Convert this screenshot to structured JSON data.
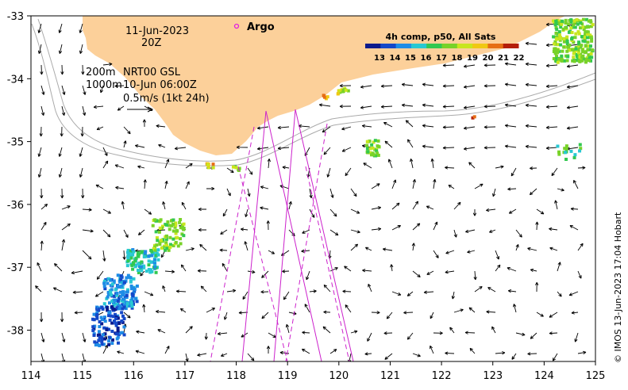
{
  "annotations": {
    "date": "11-Jun-2023",
    "time": "20Z",
    "isobath_200": "200m",
    "isobath_1000": "1000m",
    "current_product": "NRT00 GSL",
    "current_time": "10-Jun 06:00Z",
    "scale_label": "0.5m/s (1kt 24h)"
  },
  "legend": {
    "argo_label": "Argo",
    "argo_color": "#e020e0",
    "colorbar_title": "4h comp, p50, All Sats",
    "colorbar_ticks": [
      "13",
      "14",
      "15",
      "16",
      "17",
      "18",
      "19",
      "20",
      "21",
      "22"
    ],
    "colorbar_colors": [
      "#0a1a8c",
      "#1448c8",
      "#1e8ce6",
      "#28c8d2",
      "#32c850",
      "#78d228",
      "#c8e61e",
      "#f0c814",
      "#e66e14",
      "#b41e0a"
    ]
  },
  "credit": "© IMOS 13-Jun-2023 17:04 Hobart",
  "axes": {
    "x_ticks": [
      "114",
      "115",
      "116",
      "117",
      "118",
      "119",
      "120",
      "121",
      "122",
      "123",
      "124",
      "125"
    ],
    "y_ticks": [
      "-33",
      "-34",
      "-35",
      "-36",
      "-37",
      "-38"
    ],
    "lon_range": [
      114,
      125
    ],
    "lat_range": [
      -33,
      -38.5
    ]
  },
  "colors": {
    "land": "#fcd09a",
    "track": "#cc22cc",
    "isobath": "#aaaaaa"
  }
}
